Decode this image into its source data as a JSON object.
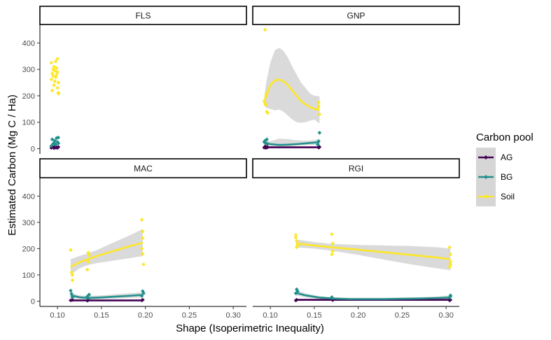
{
  "chart_data": {
    "type": "scatter",
    "xlabel": "Shape (Isoperimetric Inequality)",
    "ylabel": "Estimated Carbon (Mg C / Ha)",
    "xlim": [
      0.08,
      0.315
    ],
    "ylim": [
      -20,
      470
    ],
    "x_ticks": [
      0.1,
      0.15,
      0.2,
      0.25,
      0.3
    ],
    "x_tick_labels": [
      "0.10",
      "0.15",
      "0.20",
      "0.25",
      "0.30"
    ],
    "y_ticks": [
      0,
      100,
      200,
      300,
      400
    ],
    "y_tick_labels": [
      "0",
      "100",
      "200",
      "300",
      "400"
    ],
    "legend": {
      "title": "Carbon pool",
      "position": "right",
      "entries": [
        "AG",
        "BG",
        "Soil"
      ]
    },
    "colors": {
      "AG": "#440154",
      "BG": "#21908c",
      "Soil": "#fde725",
      "ribbon": "#d6d6d6"
    },
    "grid": false,
    "panels": [
      {
        "name": "FLS",
        "points": {
          "AG": [
            [
              0.093,
              3
            ],
            [
              0.095,
              6
            ],
            [
              0.096,
              2
            ],
            [
              0.097,
              7
            ],
            [
              0.098,
              4
            ],
            [
              0.099,
              5
            ],
            [
              0.1,
              3
            ],
            [
              0.101,
              6
            ]
          ],
          "BG": [
            [
              0.093,
              10
            ],
            [
              0.094,
              35
            ],
            [
              0.095,
              18
            ],
            [
              0.096,
              22
            ],
            [
              0.097,
              30
            ],
            [
              0.098,
              15
            ],
            [
              0.099,
              40
            ],
            [
              0.1,
              25
            ],
            [
              0.101,
              42
            ],
            [
              0.101,
              20
            ]
          ],
          "Soil": [
            [
              0.093,
              325
            ],
            [
              0.093,
              262
            ],
            [
              0.094,
              285
            ],
            [
              0.094,
              220
            ],
            [
              0.095,
              300
            ],
            [
              0.095,
              275
            ],
            [
              0.096,
              310
            ],
            [
              0.096,
              240
            ],
            [
              0.097,
              295
            ],
            [
              0.097,
              255
            ],
            [
              0.098,
              330
            ],
            [
              0.098,
              270
            ],
            [
              0.099,
              280
            ],
            [
              0.099,
              305
            ],
            [
              0.1,
              340
            ],
            [
              0.1,
              290
            ],
            [
              0.1,
              230
            ],
            [
              0.101,
              250
            ],
            [
              0.101,
              212
            ],
            [
              0.101,
              208
            ]
          ]
        },
        "smooth": {}
      },
      {
        "name": "GNP",
        "points": {
          "AG": [
            [
              0.093,
              4
            ],
            [
              0.094,
              8
            ],
            [
              0.095,
              3
            ],
            [
              0.096,
              6
            ],
            [
              0.097,
              5
            ],
            [
              0.155,
              4
            ],
            [
              0.156,
              6
            ]
          ],
          "BG": [
            [
              0.093,
              25
            ],
            [
              0.094,
              30
            ],
            [
              0.095,
              20
            ],
            [
              0.096,
              35
            ],
            [
              0.097,
              18
            ],
            [
              0.154,
              15
            ],
            [
              0.155,
              28
            ],
            [
              0.156,
              60
            ]
          ],
          "Soil": [
            [
              0.094,
              450
            ],
            [
              0.093,
              180
            ],
            [
              0.094,
              170
            ],
            [
              0.095,
              200
            ],
            [
              0.096,
              140
            ],
            [
              0.096,
              210
            ],
            [
              0.097,
              135
            ],
            [
              0.095,
              165
            ],
            [
              0.154,
              150
            ],
            [
              0.155,
              175
            ],
            [
              0.156,
              130
            ],
            [
              0.155,
              160
            ]
          ]
        },
        "smooth": {
          "AG": {
            "x": [
              0.093,
              0.155
            ],
            "y": [
              5,
              5
            ],
            "lo": [
              1,
              1
            ],
            "hi": [
              9,
              9
            ]
          },
          "BG": {
            "x": [
              0.093,
              0.1,
              0.11,
              0.12,
              0.13,
              0.14,
              0.15,
              0.156
            ],
            "y": [
              22,
              17,
              14,
              15,
              17,
              20,
              23,
              24
            ],
            "lo": [
              14,
              10,
              8,
              9,
              11,
              13,
              14,
              12
            ],
            "hi": [
              30,
              28,
              38,
              36,
              32,
              30,
              32,
              38
            ]
          },
          "Soil": {
            "x": [
              0.093,
              0.095,
              0.1,
              0.105,
              0.11,
              0.115,
              0.12,
              0.125,
              0.13,
              0.135,
              0.14,
              0.145,
              0.15,
              0.156
            ],
            "y": [
              176,
              200,
              240,
              258,
              262,
              255,
              240,
              220,
              200,
              180,
              168,
              158,
              150,
              146
            ],
            "lo": [
              165,
              155,
              150,
              145,
              148,
              140,
              125,
              110,
              100,
              98,
              100,
              105,
              110,
              95
            ],
            "hi": [
              185,
              245,
              325,
              372,
              382,
              370,
              345,
              310,
              280,
              250,
              230,
              210,
              200,
              198
            ]
          }
        }
      },
      {
        "name": "MAC",
        "points": {
          "AG": [
            [
              0.115,
              3
            ],
            [
              0.117,
              5
            ],
            [
              0.134,
              2
            ],
            [
              0.135,
              4
            ],
            [
              0.196,
              3
            ],
            [
              0.197,
              5
            ]
          ],
          "BG": [
            [
              0.115,
              40
            ],
            [
              0.116,
              28
            ],
            [
              0.117,
              15
            ],
            [
              0.134,
              18
            ],
            [
              0.135,
              10
            ],
            [
              0.136,
              25
            ],
            [
              0.196,
              20
            ],
            [
              0.197,
              38
            ],
            [
              0.198,
              30
            ]
          ],
          "Soil": [
            [
              0.115,
              195
            ],
            [
              0.116,
              110
            ],
            [
              0.117,
              80
            ],
            [
              0.117,
              100
            ],
            [
              0.134,
              120
            ],
            [
              0.135,
              150
            ],
            [
              0.135,
              185
            ],
            [
              0.136,
              175
            ],
            [
              0.196,
              310
            ],
            [
              0.197,
              265
            ],
            [
              0.197,
              240
            ],
            [
              0.196,
              200
            ],
            [
              0.197,
              180
            ],
            [
              0.198,
              140
            ]
          ]
        },
        "smooth": {
          "AG": {
            "x": [
              0.115,
              0.197
            ],
            "y": [
              3,
              3
            ],
            "lo": [
              0,
              0
            ],
            "hi": [
              7,
              7
            ]
          },
          "BG": {
            "x": [
              0.115,
              0.125,
              0.135,
              0.15,
              0.165,
              0.18,
              0.197
            ],
            "y": [
              22,
              15,
              12,
              14,
              17,
              20,
              24
            ],
            "lo": [
              12,
              8,
              6,
              8,
              10,
              12,
              14
            ],
            "hi": [
              32,
              22,
              20,
              22,
              26,
              30,
              34
            ]
          },
          "Soil": {
            "x": [
              0.115,
              0.125,
              0.135,
              0.145,
              0.155,
              0.165,
              0.175,
              0.185,
              0.197
            ],
            "y": [
              130,
              148,
              160,
              172,
              182,
              192,
              202,
              212,
              222
            ],
            "lo": [
              100,
              125,
              138,
              145,
              150,
              155,
              160,
              165,
              172
            ],
            "hi": [
              160,
              172,
              182,
              195,
              210,
              225,
              240,
              255,
              275
            ]
          }
        }
      },
      {
        "name": "RGI",
        "points": {
          "AG": [
            [
              0.129,
              3
            ],
            [
              0.13,
              5
            ],
            [
              0.171,
              4
            ],
            [
              0.304,
              3
            ],
            [
              0.305,
              5
            ]
          ],
          "BG": [
            [
              0.129,
              30
            ],
            [
              0.13,
              45
            ],
            [
              0.131,
              38
            ],
            [
              0.17,
              15
            ],
            [
              0.171,
              10
            ],
            [
              0.304,
              8
            ],
            [
              0.305,
              18
            ],
            [
              0.305,
              22
            ]
          ],
          "Soil": [
            [
              0.129,
              252
            ],
            [
              0.129,
              242
            ],
            [
              0.13,
              230
            ],
            [
              0.131,
              212
            ],
            [
              0.13,
              205
            ],
            [
              0.17,
              255
            ],
            [
              0.171,
              220
            ],
            [
              0.171,
              190
            ],
            [
              0.17,
              178
            ],
            [
              0.304,
              205
            ],
            [
              0.305,
              178
            ],
            [
              0.305,
              150
            ],
            [
              0.304,
              130
            ],
            [
              0.305,
              140
            ]
          ]
        },
        "smooth": {
          "AG": {
            "x": [
              0.129,
              0.305
            ],
            "y": [
              5,
              5
            ],
            "lo": [
              1,
              1
            ],
            "hi": [
              9,
              9
            ]
          },
          "BG": {
            "x": [
              0.129,
              0.14,
              0.155,
              0.17,
              0.19,
              0.21,
              0.23,
              0.25,
              0.27,
              0.29,
              0.305
            ],
            "y": [
              32,
              22,
              14,
              10,
              8,
              8,
              8,
              9,
              10,
              12,
              14
            ],
            "lo": [
              22,
              15,
              9,
              5,
              3,
              3,
              3,
              4,
              5,
              6,
              6
            ],
            "hi": [
              42,
              30,
              19,
              15,
              13,
              13,
              13,
              14,
              15,
              18,
              22
            ]
          },
          "Soil": {
            "x": [
              0.129,
              0.15,
              0.17,
              0.2,
              0.23,
              0.26,
              0.29,
              0.305
            ],
            "y": [
              220,
              212,
              205,
              196,
              186,
              176,
              166,
              160
            ],
            "lo": [
              205,
              200,
              192,
              176,
              158,
              140,
              125,
              118
            ],
            "hi": [
              235,
              225,
              218,
              214,
              212,
              210,
              205,
              200
            ]
          }
        }
      }
    ]
  }
}
